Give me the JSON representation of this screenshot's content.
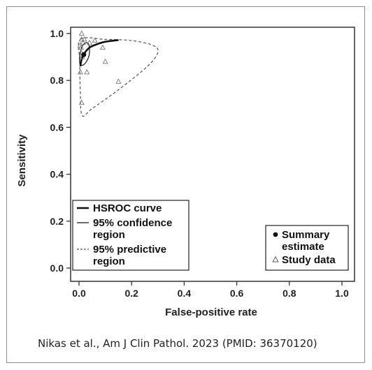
{
  "citation": "Nikas et al., Am J Clin Pathol. 2023 (PMID: 36370120)",
  "chart_data": {
    "type": "scatter",
    "title": "",
    "xlabel": "False-positive rate",
    "ylabel": "Sensitivity",
    "xlim": [
      0.0,
      1.0
    ],
    "ylim": [
      0.0,
      1.0
    ],
    "xticks": [
      "0.0",
      "0.2",
      "0.4",
      "0.6",
      "0.8",
      "1.0"
    ],
    "yticks": [
      "0.0",
      "0.2",
      "0.4",
      "0.6",
      "0.8",
      "1.0"
    ],
    "grid": false,
    "summary_point": {
      "name": "Summary estimate",
      "x": 0.018,
      "y": 0.91
    },
    "hsroc_curve": {
      "name": "HSROC curve",
      "x": [
        0.005,
        0.01,
        0.02,
        0.04,
        0.07,
        0.1,
        0.15
      ],
      "y": [
        0.86,
        0.89,
        0.915,
        0.94,
        0.955,
        0.965,
        0.972
      ]
    },
    "confidence_region": {
      "name": "95% confidence region",
      "x": [
        0.04,
        0.036,
        0.025,
        0.012,
        0.003,
        0.004,
        0.014,
        0.028,
        0.038,
        0.04
      ],
      "y": [
        0.93,
        0.955,
        0.96,
        0.945,
        0.905,
        0.87,
        0.865,
        0.88,
        0.905,
        0.93
      ]
    },
    "predictive_region": {
      "name": "95% predictive region",
      "x": [
        0.005,
        0.1,
        0.2,
        0.28,
        0.3,
        0.26,
        0.15,
        0.05,
        0.012,
        0.005,
        0.003,
        0.005
      ],
      "y": [
        0.975,
        0.975,
        0.97,
        0.95,
        0.92,
        0.86,
        0.76,
        0.68,
        0.65,
        0.75,
        0.88,
        0.975
      ]
    },
    "study_data": {
      "name": "Study data",
      "x": [
        0.01,
        0.01,
        0.005,
        0.008,
        0.008,
        0.012,
        0.015,
        0.02,
        0.04,
        0.06,
        0.09,
        0.1,
        0.03,
        0.005,
        0.01,
        0.15
      ],
      "y": [
        1.0,
        0.975,
        0.95,
        0.94,
        0.92,
        0.9,
        0.96,
        0.975,
        0.96,
        0.97,
        0.94,
        0.88,
        0.835,
        0.835,
        0.705,
        0.795
      ]
    },
    "legend_left": {
      "position": "bottom-left",
      "entries": [
        {
          "style": "thick",
          "lines": [
            "HSROC curve"
          ]
        },
        {
          "style": "thin",
          "lines": [
            "95% confidence",
            "region"
          ]
        },
        {
          "style": "dashed",
          "lines": [
            "95% predictive",
            "region"
          ]
        }
      ]
    },
    "legend_right": {
      "position": "bottom-right",
      "entries": [
        {
          "marker": "dot",
          "lines": [
            "Summary",
            "estimate"
          ]
        },
        {
          "marker": "triangle",
          "lines": [
            "Study data"
          ]
        }
      ]
    }
  }
}
